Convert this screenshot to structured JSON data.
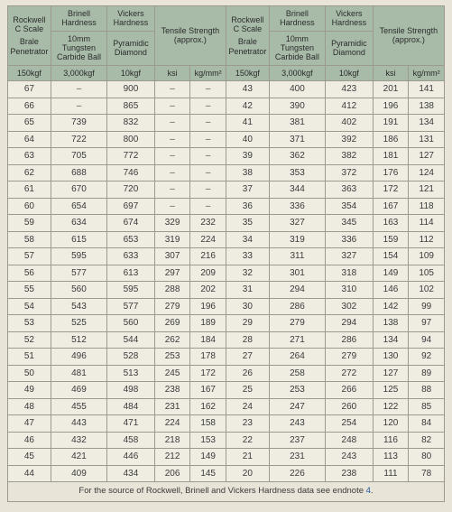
{
  "colors": {
    "page_bg": "#e8e4d8",
    "table_bg": "#efece2",
    "header_bg": "#a7bba8",
    "border": "#9c9a8e",
    "text": "#3a3a3a",
    "link": "#2257a0"
  },
  "header": {
    "rockwell": "Rockwell C Scale",
    "brinell": "Brinell Hardness",
    "vickers": "Vickers Hardness",
    "tensile": "Tensile Strength (approx.)",
    "brale": "Brale Penetrator",
    "tungsten": "10mm Tungsten Carbide Ball",
    "diamond": "Pyramidic Diamond"
  },
  "units": {
    "rockwell_load": "150kgf",
    "brinell_load": "3,000kgf",
    "vickers_load": "10kgf",
    "ksi": "ksi",
    "kgmm": "kg/mm²"
  },
  "rows": [
    {
      "hrc": "67",
      "hb": "–",
      "hv": "900",
      "ksi": "–",
      "kgmm": "–",
      "hrc2": "43",
      "hb2": "400",
      "hv2": "423",
      "ksi2": "201",
      "kgmm2": "141"
    },
    {
      "hrc": "66",
      "hb": "–",
      "hv": "865",
      "ksi": "–",
      "kgmm": "–",
      "hrc2": "42",
      "hb2": "390",
      "hv2": "412",
      "ksi2": "196",
      "kgmm2": "138"
    },
    {
      "hrc": "65",
      "hb": "739",
      "hv": "832",
      "ksi": "–",
      "kgmm": "–",
      "hrc2": "41",
      "hb2": "381",
      "hv2": "402",
      "ksi2": "191",
      "kgmm2": "134"
    },
    {
      "hrc": "64",
      "hb": "722",
      "hv": "800",
      "ksi": "–",
      "kgmm": "–",
      "hrc2": "40",
      "hb2": "371",
      "hv2": "392",
      "ksi2": "186",
      "kgmm2": "131"
    },
    {
      "hrc": "63",
      "hb": "705",
      "hv": "772",
      "ksi": "–",
      "kgmm": "–",
      "hrc2": "39",
      "hb2": "362",
      "hv2": "382",
      "ksi2": "181",
      "kgmm2": "127"
    },
    {
      "hrc": "62",
      "hb": "688",
      "hv": "746",
      "ksi": "–",
      "kgmm": "–",
      "hrc2": "38",
      "hb2": "353",
      "hv2": "372",
      "ksi2": "176",
      "kgmm2": "124"
    },
    {
      "hrc": "61",
      "hb": "670",
      "hv": "720",
      "ksi": "–",
      "kgmm": "–",
      "hrc2": "37",
      "hb2": "344",
      "hv2": "363",
      "ksi2": "172",
      "kgmm2": "121"
    },
    {
      "hrc": "60",
      "hb": "654",
      "hv": "697",
      "ksi": "–",
      "kgmm": "–",
      "hrc2": "36",
      "hb2": "336",
      "hv2": "354",
      "ksi2": "167",
      "kgmm2": "118"
    },
    {
      "hrc": "59",
      "hb": "634",
      "hv": "674",
      "ksi": "329",
      "kgmm": "232",
      "hrc2": "35",
      "hb2": "327",
      "hv2": "345",
      "ksi2": "163",
      "kgmm2": "114"
    },
    {
      "hrc": "58",
      "hb": "615",
      "hv": "653",
      "ksi": "319",
      "kgmm": "224",
      "hrc2": "34",
      "hb2": "319",
      "hv2": "336",
      "ksi2": "159",
      "kgmm2": "112"
    },
    {
      "hrc": "57",
      "hb": "595",
      "hv": "633",
      "ksi": "307",
      "kgmm": "216",
      "hrc2": "33",
      "hb2": "311",
      "hv2": "327",
      "ksi2": "154",
      "kgmm2": "109"
    },
    {
      "hrc": "56",
      "hb": "577",
      "hv": "613",
      "ksi": "297",
      "kgmm": "209",
      "hrc2": "32",
      "hb2": "301",
      "hv2": "318",
      "ksi2": "149",
      "kgmm2": "105"
    },
    {
      "hrc": "55",
      "hb": "560",
      "hv": "595",
      "ksi": "288",
      "kgmm": "202",
      "hrc2": "31",
      "hb2": "294",
      "hv2": "310",
      "ksi2": "146",
      "kgmm2": "102"
    },
    {
      "hrc": "54",
      "hb": "543",
      "hv": "577",
      "ksi": "279",
      "kgmm": "196",
      "hrc2": "30",
      "hb2": "286",
      "hv2": "302",
      "ksi2": "142",
      "kgmm2": "99"
    },
    {
      "hrc": "53",
      "hb": "525",
      "hv": "560",
      "ksi": "269",
      "kgmm": "189",
      "hrc2": "29",
      "hb2": "279",
      "hv2": "294",
      "ksi2": "138",
      "kgmm2": "97"
    },
    {
      "hrc": "52",
      "hb": "512",
      "hv": "544",
      "ksi": "262",
      "kgmm": "184",
      "hrc2": "28",
      "hb2": "271",
      "hv2": "286",
      "ksi2": "134",
      "kgmm2": "94"
    },
    {
      "hrc": "51",
      "hb": "496",
      "hv": "528",
      "ksi": "253",
      "kgmm": "178",
      "hrc2": "27",
      "hb2": "264",
      "hv2": "279",
      "ksi2": "130",
      "kgmm2": "92"
    },
    {
      "hrc": "50",
      "hb": "481",
      "hv": "513",
      "ksi": "245",
      "kgmm": "172",
      "hrc2": "26",
      "hb2": "258",
      "hv2": "272",
      "ksi2": "127",
      "kgmm2": "89"
    },
    {
      "hrc": "49",
      "hb": "469",
      "hv": "498",
      "ksi": "238",
      "kgmm": "167",
      "hrc2": "25",
      "hb2": "253",
      "hv2": "266",
      "ksi2": "125",
      "kgmm2": "88"
    },
    {
      "hrc": "48",
      "hb": "455",
      "hv": "484",
      "ksi": "231",
      "kgmm": "162",
      "hrc2": "24",
      "hb2": "247",
      "hv2": "260",
      "ksi2": "122",
      "kgmm2": "85"
    },
    {
      "hrc": "47",
      "hb": "443",
      "hv": "471",
      "ksi": "224",
      "kgmm": "158",
      "hrc2": "23",
      "hb2": "243",
      "hv2": "254",
      "ksi2": "120",
      "kgmm2": "84"
    },
    {
      "hrc": "46",
      "hb": "432",
      "hv": "458",
      "ksi": "218",
      "kgmm": "153",
      "hrc2": "22",
      "hb2": "237",
      "hv2": "248",
      "ksi2": "116",
      "kgmm2": "82"
    },
    {
      "hrc": "45",
      "hb": "421",
      "hv": "446",
      "ksi": "212",
      "kgmm": "149",
      "hrc2": "21",
      "hb2": "231",
      "hv2": "243",
      "ksi2": "113",
      "kgmm2": "80"
    },
    {
      "hrc": "44",
      "hb": "409",
      "hv": "434",
      "ksi": "206",
      "kgmm": "145",
      "hrc2": "20",
      "hb2": "226",
      "hv2": "238",
      "ksi2": "111",
      "kgmm2": "78"
    }
  ],
  "footnote": {
    "text": "For the source of Rockwell, Brinell and Vickers Hardness data see endnote",
    "num": "4",
    "period": "."
  },
  "col_widths_pct": [
    9.9,
    12.9,
    10.9,
    8.2,
    8.2,
    9.9,
    12.9,
    10.9,
    8.2,
    8.2
  ]
}
